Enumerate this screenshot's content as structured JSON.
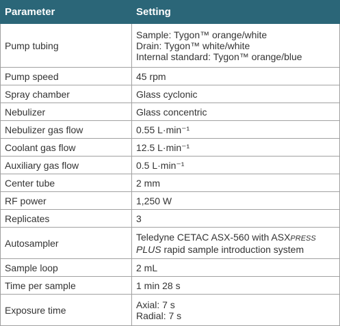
{
  "table": {
    "header": [
      "Parameter",
      "Setting"
    ],
    "rows": [
      [
        "Pump tubing",
        [
          "Sample: Tygon™ orange/white",
          "Drain: Tygon™ white/white",
          "Internal standard: Tygon™ orange/blue"
        ]
      ],
      [
        "Pump speed",
        "45 rpm"
      ],
      [
        "Spray chamber",
        "Glass cyclonic"
      ],
      [
        "Nebulizer",
        "Glass concentric"
      ],
      [
        "Nebulizer gas flow",
        "0.55 L·min⁻¹"
      ],
      [
        "Coolant gas flow",
        "12.5 L·min⁻¹"
      ],
      [
        "Auxiliary gas flow",
        "0.5 L·min⁻¹"
      ],
      [
        "Center tube",
        "2 mm"
      ],
      [
        "RF power",
        "1,250 W"
      ],
      [
        "Replicates",
        "3"
      ],
      [
        "Autosampler",
        [
          [
            "Teledyne CETAC ASX-560 with ASX",
            "PRESS"
          ],
          [
            "PLUS",
            " rapid sample introduction system"
          ]
        ]
      ],
      [
        "Sample loop",
        "2 mL"
      ],
      [
        "Time per sample",
        "1 min 28 s"
      ],
      [
        "Exposure time",
        [
          "Axial: 7 s",
          "Radial: 7 s"
        ]
      ]
    ]
  }
}
